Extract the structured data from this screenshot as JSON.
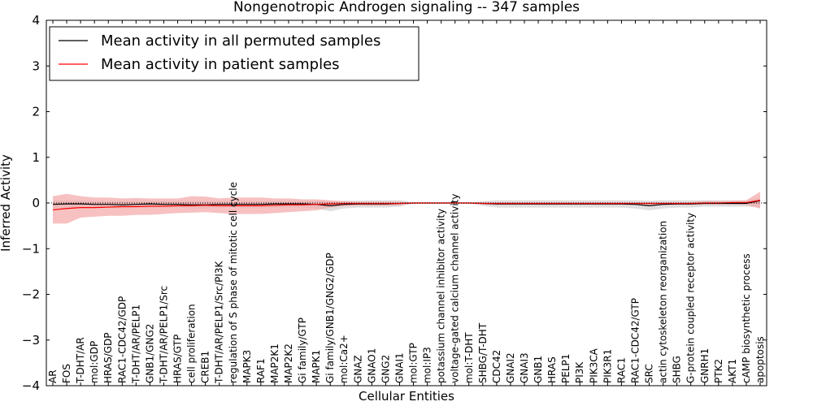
{
  "chart_data": {
    "type": "line",
    "title": "Nongenotropic Androgen signaling -- 347 samples",
    "xlabel": "Cellular Entities",
    "ylabel": "Inferred Activity",
    "ylim": [
      -4,
      4
    ],
    "yticks": [
      -4,
      -3,
      -2,
      -1,
      0,
      1,
      2,
      3,
      4
    ],
    "ytick_labels": [
      "−4",
      "−3",
      "−2",
      "−1",
      "0",
      "1",
      "2",
      "3",
      "4"
    ],
    "grid": false,
    "legend_position": "top-left",
    "categories": [
      "AR",
      "FOS",
      "T-DHT/AR",
      "mol:GDP",
      "HRAS/GDP",
      "RAC1-CDC42/GDP",
      "T-DHT/AR/PELP1",
      "GNB1/GNG2",
      "T-DHT/AR/PELP1/Src",
      "HRAS/GTP",
      "cell proliferation",
      "CREB1",
      "T-DHT/AR/PELP1/Src/PI3K",
      "regulation of S phase of mitotic cell cycle",
      "MAPK3",
      "RAF1",
      "MAP2K1",
      "MAP2K2",
      "Gi family/GTP",
      "MAPK1",
      "Gi family/GNB1/GNG2/GDP",
      "mol:Ca2+",
      "GNAZ",
      "GNAO1",
      "GNG2",
      "GNAI1",
      "mol:GTP",
      "mol:IP3",
      "potassium channel inhibitor activity",
      "voltage-gated calcium channel activity",
      "mol:T-DHT",
      "SHBG/T-DHT",
      "CDC42",
      "GNAI2",
      "GNAI3",
      "GNB1",
      "HRAS",
      "PELP1",
      "PI3K",
      "PIK3CA",
      "PIK3R1",
      "RAC1",
      "RAC1-CDC42/GTP",
      "SRC",
      "actin cytoskeleton reorganization",
      "SHBG",
      "G-protein coupled receptor activity",
      "GNRH1",
      "PTK2",
      "AKT1",
      "cAMP biosynthetic process",
      "apoptosis"
    ],
    "series": [
      {
        "name": "Mean activity in all permuted samples",
        "color": "#000000",
        "band_color": "#d9d9d9",
        "values": [
          -0.03,
          -0.02,
          -0.02,
          -0.03,
          -0.03,
          -0.04,
          -0.03,
          -0.02,
          -0.03,
          -0.03,
          -0.04,
          -0.04,
          -0.03,
          -0.03,
          -0.03,
          -0.03,
          -0.02,
          -0.02,
          -0.02,
          -0.03,
          -0.06,
          -0.03,
          -0.02,
          -0.02,
          -0.02,
          -0.01,
          0,
          0,
          0,
          0,
          0,
          -0.01,
          -0.02,
          -0.02,
          -0.02,
          -0.02,
          -0.02,
          -0.02,
          -0.02,
          -0.02,
          -0.02,
          -0.02,
          -0.03,
          -0.06,
          -0.03,
          -0.02,
          -0.02,
          -0.01,
          -0.01,
          -0.01,
          -0.01,
          0.05
        ],
        "lower": [
          -0.12,
          -0.1,
          -0.1,
          -0.1,
          -0.1,
          -0.12,
          -0.1,
          -0.1,
          -0.1,
          -0.1,
          -0.12,
          -0.12,
          -0.1,
          -0.1,
          -0.1,
          -0.1,
          -0.1,
          -0.1,
          -0.1,
          -0.12,
          -0.18,
          -0.12,
          -0.1,
          -0.1,
          -0.1,
          -0.08,
          -0.01,
          -0.01,
          -0.01,
          -0.01,
          -0.01,
          -0.06,
          -0.1,
          -0.1,
          -0.1,
          -0.1,
          -0.1,
          -0.1,
          -0.1,
          -0.1,
          -0.1,
          -0.1,
          -0.12,
          -0.16,
          -0.12,
          -0.1,
          -0.1,
          -0.08,
          -0.08,
          -0.08,
          -0.08,
          -0.1
        ],
        "upper": [
          0.06,
          0.06,
          0.06,
          0.04,
          0.04,
          0.04,
          0.04,
          0.05,
          0.04,
          0.04,
          0.04,
          0.04,
          0.04,
          0.04,
          0.04,
          0.04,
          0.05,
          0.05,
          0.05,
          0.05,
          0.03,
          0.05,
          0.05,
          0.06,
          0.06,
          0.06,
          0.01,
          0.01,
          0.01,
          0.01,
          0.01,
          0.04,
          0.06,
          0.06,
          0.06,
          0.06,
          0.06,
          0.06,
          0.06,
          0.06,
          0.06,
          0.06,
          0.06,
          0.05,
          0.06,
          0.06,
          0.06,
          0.06,
          0.06,
          0.06,
          0.06,
          0.12
        ]
      },
      {
        "name": "Mean activity in patient samples",
        "color": "#ff0000",
        "band_color": "#f4a6a6",
        "values": [
          -0.15,
          -0.12,
          -0.1,
          -0.1,
          -0.09,
          -0.08,
          -0.08,
          -0.07,
          -0.07,
          -0.06,
          -0.06,
          -0.05,
          -0.06,
          -0.06,
          -0.06,
          -0.06,
          -0.05,
          -0.04,
          -0.04,
          -0.03,
          -0.02,
          -0.01,
          -0.01,
          -0.01,
          -0.01,
          -0.01,
          0,
          0,
          0,
          0,
          0,
          -0.01,
          -0.01,
          -0.01,
          -0.01,
          -0.01,
          -0.01,
          -0.01,
          -0.01,
          -0.01,
          -0.01,
          -0.01,
          -0.01,
          -0.01,
          -0.01,
          -0.01,
          -0.01,
          0,
          0,
          0.01,
          0.01,
          0.06
        ],
        "lower": [
          -0.45,
          -0.45,
          -0.32,
          -0.3,
          -0.28,
          -0.28,
          -0.26,
          -0.26,
          -0.24,
          -0.22,
          -0.21,
          -0.2,
          -0.22,
          -0.24,
          -0.24,
          -0.24,
          -0.22,
          -0.2,
          -0.18,
          -0.16,
          -0.1,
          -0.07,
          -0.06,
          -0.06,
          -0.06,
          -0.05,
          -0.01,
          -0.01,
          -0.01,
          -0.01,
          -0.01,
          -0.03,
          -0.04,
          -0.04,
          -0.04,
          -0.04,
          -0.04,
          -0.04,
          -0.04,
          -0.04,
          -0.04,
          -0.04,
          -0.04,
          -0.04,
          -0.04,
          -0.04,
          -0.04,
          -0.03,
          -0.03,
          -0.03,
          -0.04,
          -0.12
        ],
        "upper": [
          0.15,
          0.2,
          0.15,
          0.12,
          0.12,
          0.1,
          0.11,
          0.1,
          0.1,
          0.1,
          0.15,
          0.14,
          0.1,
          0.12,
          0.12,
          0.12,
          0.1,
          0.1,
          0.08,
          0.08,
          0.06,
          0.04,
          0.03,
          0.03,
          0.03,
          0.03,
          0.01,
          0.01,
          0.01,
          0.01,
          0.01,
          0.02,
          0.02,
          0.02,
          0.02,
          0.02,
          0.02,
          0.02,
          0.02,
          0.02,
          0.02,
          0.02,
          0.02,
          0.02,
          0.02,
          0.02,
          0.02,
          0.04,
          0.04,
          0.05,
          0.06,
          0.25
        ]
      }
    ]
  }
}
